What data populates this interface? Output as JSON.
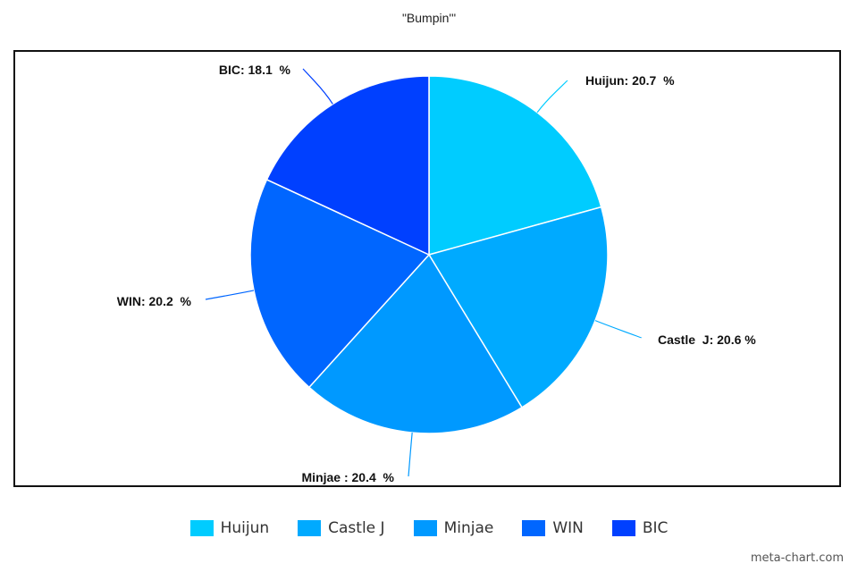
{
  "chart_data": {
    "type": "pie",
    "title": "\"Bumpin'\"",
    "legend_position": "bottom",
    "label_suffix": " %",
    "slices": [
      {
        "name": "Huijun",
        "value": 20.7,
        "label": "Huijun: 20.7  %",
        "color": "#00ccff"
      },
      {
        "name": "Castle J",
        "value": 20.6,
        "label": "Castle  J: 20.6 %",
        "color": "#00aaff"
      },
      {
        "name": "Minjae",
        "value": 20.4,
        "label": "Minjae : 20.4  %",
        "color": "#0099ff"
      },
      {
        "name": "WIN",
        "value": 20.2,
        "label": "WIN: 20.2  %",
        "color": "#0066ff"
      },
      {
        "name": "BIC",
        "value": 18.1,
        "label": "BIC: 18.1  %",
        "color": "#0040ff"
      }
    ]
  },
  "watermark": "meta-chart.com"
}
